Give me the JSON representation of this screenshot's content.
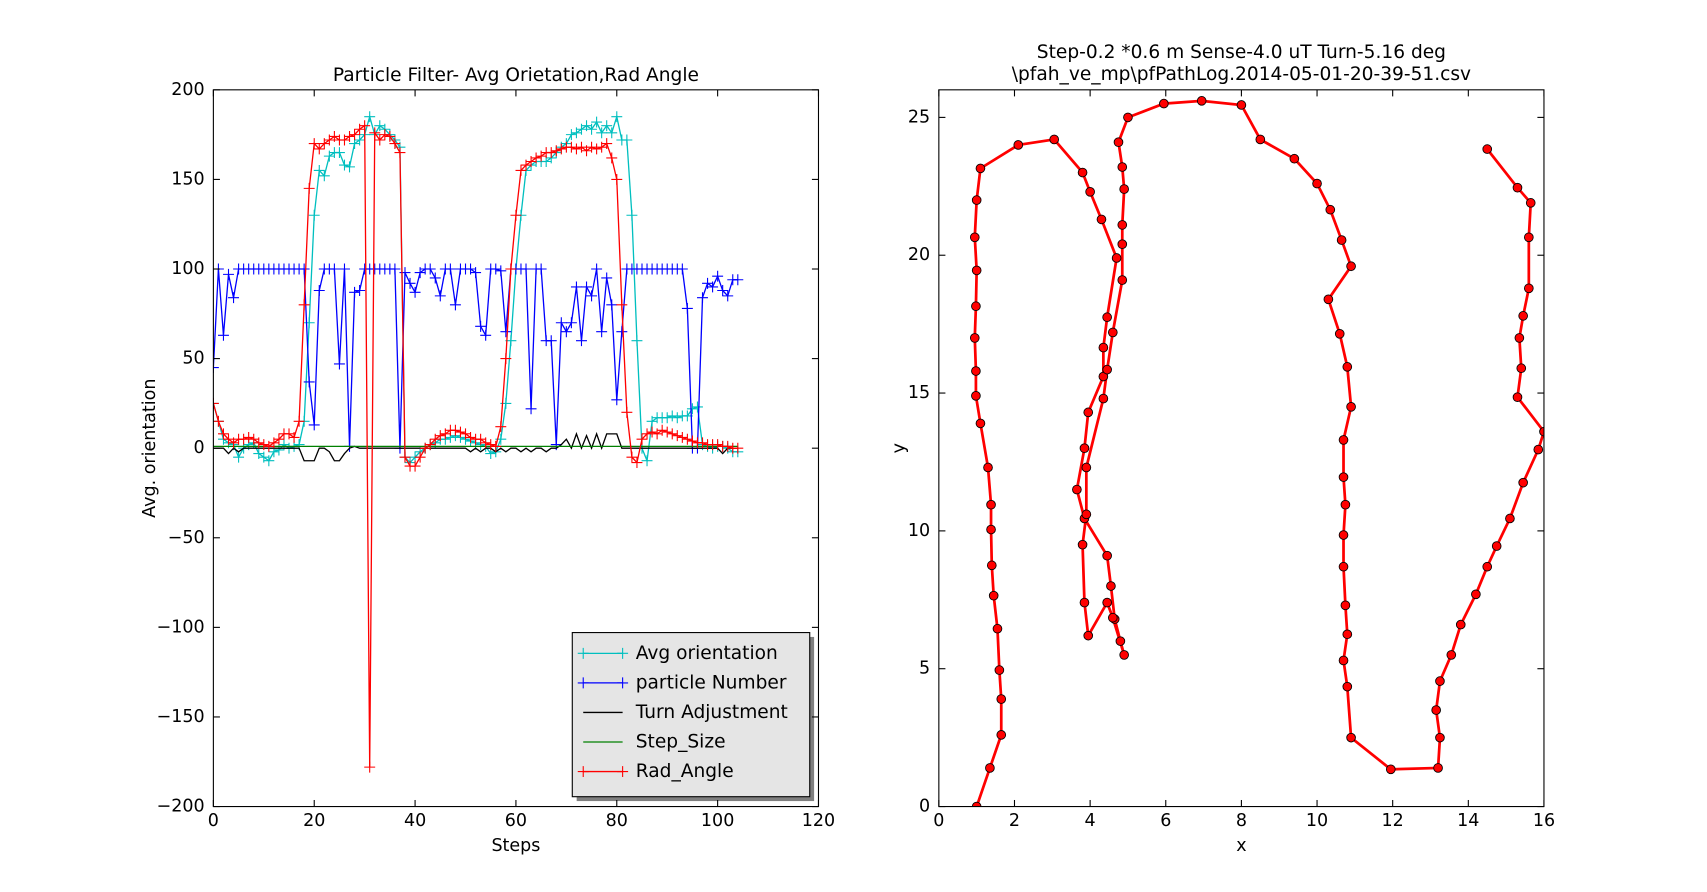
{
  "chart_data": [
    {
      "type": "line",
      "title": "Particle Filter- Avg Orietation,Rad Angle",
      "xlabel": "Steps",
      "ylabel": "Avg. orientation",
      "xlim": [
        0,
        120
      ],
      "xticks": [
        0,
        20,
        40,
        60,
        80,
        100,
        120
      ],
      "ylim": [
        -200,
        200
      ],
      "yticks": [
        {
          "value": -200,
          "label": "−200"
        },
        {
          "value": -150,
          "label": "−150"
        },
        {
          "value": -100,
          "label": "−100"
        },
        {
          "value": -50,
          "label": "−50"
        },
        0,
        50,
        100,
        150,
        200
      ],
      "legend": "lower right",
      "x": [
        0,
        1,
        2,
        3,
        4,
        5,
        6,
        7,
        8,
        9,
        10,
        11,
        12,
        13,
        14,
        15,
        16,
        17,
        18,
        19,
        20,
        21,
        22,
        23,
        24,
        25,
        26,
        27,
        28,
        29,
        30,
        31,
        32,
        33,
        34,
        35,
        36,
        37,
        38,
        39,
        40,
        41,
        42,
        43,
        44,
        45,
        46,
        47,
        48,
        49,
        50,
        51,
        52,
        53,
        54,
        55,
        56,
        57,
        58,
        59,
        60,
        61,
        62,
        63,
        64,
        65,
        66,
        67,
        68,
        69,
        70,
        71,
        72,
        73,
        74,
        75,
        76,
        77,
        78,
        79,
        80,
        81,
        82,
        83,
        84,
        85,
        86,
        87,
        88,
        89,
        90,
        91,
        92,
        93,
        94,
        95,
        96,
        97,
        98,
        99,
        100,
        101,
        102,
        103,
        104
      ],
      "series": [
        {
          "name": "Avg orientation",
          "color": "#00bfbf",
          "marker": "+",
          "values": [
            25,
            15,
            5,
            3,
            2,
            -5,
            0,
            2,
            3,
            -3,
            -5,
            -7,
            -2,
            -1,
            2,
            0,
            1,
            2,
            15,
            70,
            130,
            155,
            152,
            163,
            165,
            165,
            158,
            157,
            170,
            172,
            175,
            185,
            175,
            180,
            178,
            175,
            172,
            168,
            -5,
            -8,
            -5,
            -2,
            0,
            2,
            3,
            5,
            5,
            6,
            7,
            6,
            5,
            4,
            3,
            2,
            1,
            -3,
            -2,
            5,
            25,
            60,
            100,
            130,
            155,
            158,
            160,
            160,
            160,
            162,
            165,
            168,
            170,
            175,
            176,
            178,
            180,
            178,
            182,
            176,
            180,
            176,
            185,
            172,
            172,
            130,
            60,
            0,
            -7,
            15,
            17,
            17,
            17,
            18,
            17,
            18,
            18,
            22,
            23,
            2,
            1,
            0,
            1,
            1,
            0,
            -2,
            -2
          ]
        },
        {
          "name": "particle Number",
          "color": "#0000ff",
          "marker": "+",
          "values": [
            45,
            100,
            63,
            97,
            84,
            100,
            100,
            100,
            100,
            100,
            100,
            100,
            100,
            100,
            100,
            100,
            100,
            100,
            100,
            37,
            13,
            88,
            100,
            100,
            100,
            47,
            100,
            1,
            87,
            88,
            100,
            100,
            100,
            100,
            100,
            100,
            100,
            0,
            98,
            92,
            87,
            98,
            100,
            100,
            95,
            85,
            100,
            100,
            80,
            100,
            100,
            100,
            98,
            68,
            63,
            100,
            100,
            99,
            65,
            100,
            100,
            100,
            100,
            22,
            100,
            100,
            60,
            60,
            2,
            70,
            65,
            70,
            90,
            60,
            90,
            85,
            100,
            65,
            95,
            80,
            27,
            65,
            100,
            100,
            100,
            100,
            100,
            100,
            100,
            100,
            100,
            100,
            100,
            100,
            78,
            0,
            0,
            84,
            92,
            90,
            96,
            88,
            85,
            94,
            94
          ]
        },
        {
          "name": "Turn Adjustment",
          "color": "#000000",
          "values": [
            0,
            0,
            0,
            -3,
            0,
            -2,
            0,
            0,
            0,
            0,
            0,
            0,
            0,
            0,
            0,
            0,
            0,
            0,
            -7,
            -7,
            -7,
            0,
            0,
            -2,
            -7,
            -7,
            -3,
            0,
            1,
            0,
            0,
            0,
            0,
            0,
            0,
            0,
            0,
            0,
            0,
            0,
            0,
            0,
            0,
            0,
            0,
            0,
            0,
            0,
            0,
            0,
            0,
            -2,
            0,
            -2,
            0,
            0,
            -2,
            0,
            -2,
            0,
            0,
            -2,
            0,
            -2,
            0,
            0,
            -2,
            0,
            0,
            2,
            5,
            0,
            8,
            0,
            7,
            0,
            8,
            0,
            8,
            8,
            8,
            0,
            0,
            0,
            0,
            0,
            0,
            0,
            0,
            0,
            0,
            0,
            0,
            0,
            0,
            0,
            0,
            0,
            0,
            0,
            0,
            -3,
            0,
            0,
            0
          ]
        },
        {
          "name": "Step_Size",
          "color": "#008000",
          "values": [
            1,
            1,
            1,
            1,
            1,
            1,
            1,
            1,
            1,
            1,
            1,
            1,
            1,
            1,
            1,
            1,
            1,
            1,
            1,
            1,
            1,
            1,
            1,
            1,
            1,
            1,
            1,
            1,
            1,
            1,
            1,
            1,
            1,
            1,
            1,
            1,
            1,
            1,
            1,
            1,
            1,
            1,
            1,
            1,
            1,
            1,
            1,
            1,
            1,
            1,
            1,
            1,
            1,
            1,
            1,
            1,
            1,
            1,
            1,
            1,
            1,
            1,
            1,
            1,
            1,
            1,
            1,
            1,
            1,
            1,
            1,
            1,
            1,
            1,
            1,
            1,
            1,
            1,
            1,
            1,
            1,
            1,
            1,
            1,
            1,
            1,
            1,
            1,
            1,
            1,
            1,
            1,
            1,
            1,
            1,
            1,
            1,
            1,
            1,
            1,
            1,
            1,
            1,
            1,
            1
          ]
        },
        {
          "name": "Rad_Angle",
          "color": "#ff0000",
          "marker": "+",
          "values": [
            25,
            15,
            8,
            5,
            3,
            5,
            5,
            6,
            5,
            3,
            2,
            1,
            3,
            5,
            8,
            8,
            6,
            15,
            80,
            145,
            170,
            167,
            170,
            172,
            174,
            172,
            172,
            174,
            175,
            178,
            180,
            -178,
            176,
            172,
            175,
            174,
            170,
            165,
            -5,
            -10,
            -10,
            -5,
            0,
            2,
            5,
            7,
            8,
            10,
            10,
            9,
            8,
            6,
            5,
            5,
            3,
            2,
            1,
            12,
            50,
            100,
            130,
            155,
            158,
            160,
            162,
            163,
            165,
            165,
            166,
            167,
            168,
            168,
            167,
            168,
            166,
            168,
            167,
            168,
            170,
            162,
            150,
            80,
            20,
            -5,
            -8,
            5,
            8,
            9,
            8,
            10,
            9,
            8,
            7,
            6,
            5,
            4,
            3,
            3,
            2,
            2,
            2,
            1,
            1,
            0,
            0
          ]
        }
      ]
    },
    {
      "type": "line",
      "title": [
        "Step-0.2 *0.6 m  Sense-4.0 uT Turn-5.16 deg",
        "\\pfah_ve_mp\\pfPathLog.2014-05-01-20-39-51.csv"
      ],
      "xlabel": "x",
      "ylabel": "y",
      "xlim": [
        0,
        16
      ],
      "xticks": [
        0,
        2,
        4,
        6,
        8,
        10,
        12,
        14,
        16
      ],
      "ylim": [
        0,
        26
      ],
      "yticks": [
        0,
        5,
        10,
        15,
        20,
        25
      ],
      "x": [
        1.0,
        1.35,
        1.65,
        1.65,
        1.6,
        1.55,
        1.45,
        1.4,
        1.38,
        1.38,
        1.3,
        1.1,
        0.98,
        0.98,
        0.95,
        0.98,
        1.0,
        0.95,
        1.0,
        1.1,
        2.1,
        3.05,
        3.8,
        4.0,
        4.3,
        4.7,
        4.45,
        4.35,
        4.35,
        3.95,
        3.85,
        3.65,
        3.85,
        4.45,
        4.55,
        4.65,
        4.8,
        4.9,
        4.6,
        4.45,
        3.95,
        3.85,
        3.8,
        3.9,
        3.9,
        4.35,
        4.45,
        4.6,
        4.85,
        4.85,
        4.85,
        4.9,
        4.85,
        4.75,
        5.0,
        5.95,
        6.95,
        8.0,
        8.5,
        9.4,
        10.0,
        10.35,
        10.65,
        10.9,
        10.3,
        10.6,
        10.8,
        10.9,
        10.7,
        10.7,
        10.75,
        10.7,
        10.7,
        10.75,
        10.8,
        10.7,
        10.8,
        10.9,
        11.95,
        13.2,
        13.25,
        13.15,
        13.25,
        13.55,
        13.8,
        14.2,
        14.5,
        14.75,
        15.1,
        15.45,
        15.85,
        16.0,
        15.3,
        15.4,
        15.35,
        15.45,
        15.6,
        15.6,
        15.65,
        15.3,
        14.5
      ],
      "series": [
        {
          "color": "#ff0000",
          "marker": "o",
          "values": [
            0,
            1.4,
            2.6,
            3.9,
            4.95,
            6.45,
            7.65,
            8.75,
            10.05,
            10.95,
            12.3,
            13.9,
            14.9,
            15.8,
            17.0,
            18.15,
            19.45,
            20.65,
            22.0,
            23.15,
            24.0,
            24.2,
            23.0,
            22.3,
            21.3,
            19.9,
            17.75,
            16.65,
            15.6,
            14.3,
            13.0,
            11.5,
            10.45,
            9.1,
            8.0,
            6.8,
            6.0,
            5.5,
            6.85,
            7.4,
            6.2,
            7.4,
            9.5,
            10.6,
            12.3,
            14.8,
            15.85,
            17.2,
            19.1,
            20.4,
            21.1,
            22.4,
            23.2,
            24.1,
            25.0,
            25.5,
            25.6,
            25.45,
            24.2,
            23.5,
            22.6,
            21.65,
            20.55,
            19.6,
            18.4,
            17.15,
            15.95,
            14.5,
            13.3,
            11.95,
            10.95,
            9.85,
            8.7,
            7.3,
            6.25,
            5.3,
            4.35,
            2.5,
            1.35,
            1.4,
            2.5,
            3.5,
            4.55,
            5.5,
            6.6,
            7.7,
            8.7,
            9.45,
            10.45,
            11.75,
            12.95,
            13.6,
            14.85,
            15.9,
            17.0,
            17.8,
            18.8,
            20.65,
            21.9,
            22.45,
            23.85
          ]
        }
      ]
    }
  ]
}
